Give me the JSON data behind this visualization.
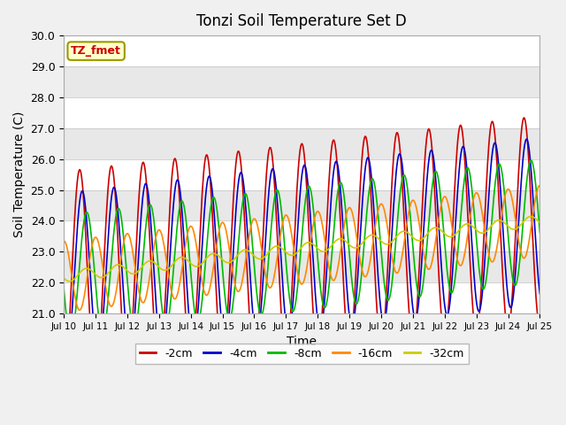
{
  "title": "Tonzi Soil Temperature Set D",
  "xlabel": "Time",
  "ylabel": "Soil Temperature (C)",
  "ylim": [
    21.0,
    30.0
  ],
  "yticks": [
    21.0,
    22.0,
    23.0,
    24.0,
    25.0,
    26.0,
    27.0,
    28.0,
    29.0,
    30.0
  ],
  "legend_label": "TZ_fmet",
  "line_colors": [
    "#cc0000",
    "#0000cc",
    "#00bb00",
    "#ff8800",
    "#cccc00"
  ],
  "line_labels": [
    "-2cm",
    "-4cm",
    "-8cm",
    "-16cm",
    "-32cm"
  ],
  "x_start_day": 10,
  "x_end_day": 25,
  "num_points": 720,
  "base_temp": 22.2,
  "trend_rate": 0.12,
  "amplitudes": [
    3.4,
    2.7,
    2.0,
    1.15,
    0.18
  ],
  "phase_lags": [
    0.0,
    0.08,
    0.22,
    0.5,
    1.2
  ],
  "bg_color": "#e8e8e8",
  "plot_bg_color": "#e8e8e8",
  "grid_color": "#ffffff",
  "xtick_labels": [
    "Jul 10",
    "Jul 11",
    "Jul 12",
    "Jul 13",
    "Jul 14",
    "Jul 15",
    "Jul 16",
    "Jul 17",
    "Jul 18",
    "Jul 19",
    "Jul 20",
    "Jul 21",
    "Jul 22",
    "Jul 23",
    "Jul 24",
    "Jul 25"
  ],
  "xtick_positions": [
    10,
    11,
    12,
    13,
    14,
    15,
    16,
    17,
    18,
    19,
    20,
    21,
    22,
    23,
    24,
    25
  ]
}
